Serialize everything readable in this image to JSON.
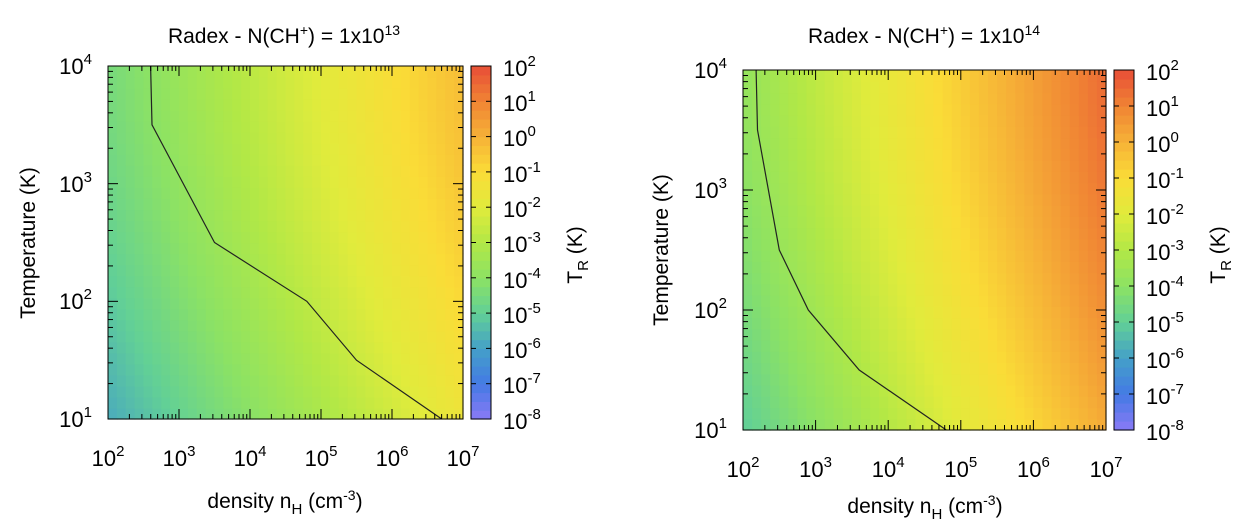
{
  "chart_data": [
    {
      "type": "heatmap",
      "title": {
        "main": "Radex - N(CH",
        "sup": "+",
        "tail": ") = 1x10",
        "exp": "13"
      },
      "xlabel": {
        "main": "density n",
        "sub": "H",
        "tail": " (cm",
        "sup": "-3",
        "end": ")"
      },
      "ylabel": "Temperature (K)",
      "x_scale": "log",
      "y_scale": "log",
      "xlim": [
        100,
        10000000
      ],
      "ylim": [
        10,
        10000
      ],
      "x_ticks": [
        {
          "base": "10",
          "exp": "2"
        },
        {
          "base": "10",
          "exp": "3"
        },
        {
          "base": "10",
          "exp": "4"
        },
        {
          "base": "10",
          "exp": "5"
        },
        {
          "base": "10",
          "exp": "6"
        },
        {
          "base": "10",
          "exp": "7"
        }
      ],
      "y_ticks": [
        {
          "base": "10",
          "exp": "1"
        },
        {
          "base": "10",
          "exp": "2"
        },
        {
          "base": "10",
          "exp": "3"
        },
        {
          "base": "10",
          "exp": "4"
        }
      ],
      "colorbar": {
        "label_main": "T",
        "label_sub": "R",
        "label_tail": " (K)",
        "scale": "log",
        "range": [
          1e-08,
          100
        ],
        "ticks": [
          {
            "base": "10",
            "exp": "2"
          },
          {
            "base": "10",
            "exp": "1"
          },
          {
            "base": "10",
            "exp": "0"
          },
          {
            "base": "10",
            "exp": "-1"
          },
          {
            "base": "10",
            "exp": "-2"
          },
          {
            "base": "10",
            "exp": "-3"
          },
          {
            "base": "10",
            "exp": "-4"
          },
          {
            "base": "10",
            "exp": "-5"
          },
          {
            "base": "10",
            "exp": "-6"
          },
          {
            "base": "10",
            "exp": "-7"
          },
          {
            "base": "10",
            "exp": "-8"
          }
        ]
      },
      "field": {
        "a": -4.5,
        "b": 0.85,
        "c": 0.22,
        "ref_n": 2,
        "ref_t": 4
      },
      "contour": {
        "level": 0.0001,
        "points": [
          [
            2.6,
            4.0
          ],
          [
            2.62,
            3.5
          ],
          [
            3.5,
            2.5
          ],
          [
            4.8,
            2.0
          ],
          [
            5.5,
            1.5
          ],
          [
            6.7,
            1.0
          ]
        ]
      }
    },
    {
      "type": "heatmap",
      "title": {
        "main": "Radex - N(CH",
        "sup": "+",
        "tail": ") = 1x10",
        "exp": "14"
      },
      "xlabel": {
        "main": "density n",
        "sub": "H",
        "tail": " (cm",
        "sup": "-3",
        "end": ")"
      },
      "ylabel": "Temperature (K)",
      "x_scale": "log",
      "y_scale": "log",
      "xlim": [
        100,
        10000000
      ],
      "ylim": [
        10,
        10000
      ],
      "x_ticks": [
        {
          "base": "10",
          "exp": "2"
        },
        {
          "base": "10",
          "exp": "3"
        },
        {
          "base": "10",
          "exp": "4"
        },
        {
          "base": "10",
          "exp": "5"
        },
        {
          "base": "10",
          "exp": "6"
        },
        {
          "base": "10",
          "exp": "7"
        }
      ],
      "y_ticks": [
        {
          "base": "10",
          "exp": "1"
        },
        {
          "base": "10",
          "exp": "2"
        },
        {
          "base": "10",
          "exp": "3"
        },
        {
          "base": "10",
          "exp": "4"
        }
      ],
      "colorbar": {
        "label_main": "T",
        "label_sub": "R",
        "label_tail": " (K)",
        "scale": "log",
        "range": [
          1e-08,
          100
        ],
        "ticks": [
          {
            "base": "10",
            "exp": "2"
          },
          {
            "base": "10",
            "exp": "1"
          },
          {
            "base": "10",
            "exp": "0"
          },
          {
            "base": "10",
            "exp": "-1"
          },
          {
            "base": "10",
            "exp": "-2"
          },
          {
            "base": "10",
            "exp": "-3"
          },
          {
            "base": "10",
            "exp": "-4"
          },
          {
            "base": "10",
            "exp": "-5"
          },
          {
            "base": "10",
            "exp": "-6"
          },
          {
            "base": "10",
            "exp": "-7"
          },
          {
            "base": "10",
            "exp": "-8"
          }
        ]
      },
      "field": {
        "a": -3.8,
        "b": 1.05,
        "c": 0.22,
        "ref_n": 2,
        "ref_t": 4
      },
      "contour": {
        "level": 0.0001,
        "points": [
          [
            2.18,
            4.0
          ],
          [
            2.2,
            3.5
          ],
          [
            2.5,
            2.5
          ],
          [
            2.9,
            2.0
          ],
          [
            3.6,
            1.5
          ],
          [
            4.8,
            1.0
          ]
        ]
      }
    }
  ]
}
